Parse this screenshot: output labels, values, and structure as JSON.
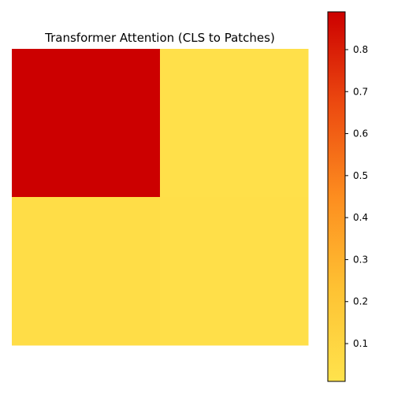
{
  "chart_data": {
    "type": "heatmap",
    "title": "Transformer Attention (CLS to Patches)",
    "xlabel": "",
    "ylabel": "",
    "rows": 2,
    "cols": 2,
    "values": [
      [
        0.89,
        0.03
      ],
      [
        0.05,
        0.04
      ]
    ],
    "colormap": "YlOrRd",
    "colorbar": {
      "vmin": 0.01,
      "vmax": 0.89,
      "ticks": [
        0.1,
        0.2,
        0.3,
        0.4,
        0.5,
        0.6,
        0.7,
        0.8
      ],
      "tick_labels": [
        "0.1",
        "0.2",
        "0.3",
        "0.4",
        "0.5",
        "0.6",
        "0.7",
        "0.8"
      ]
    },
    "axes_visible": false,
    "grid": false
  }
}
